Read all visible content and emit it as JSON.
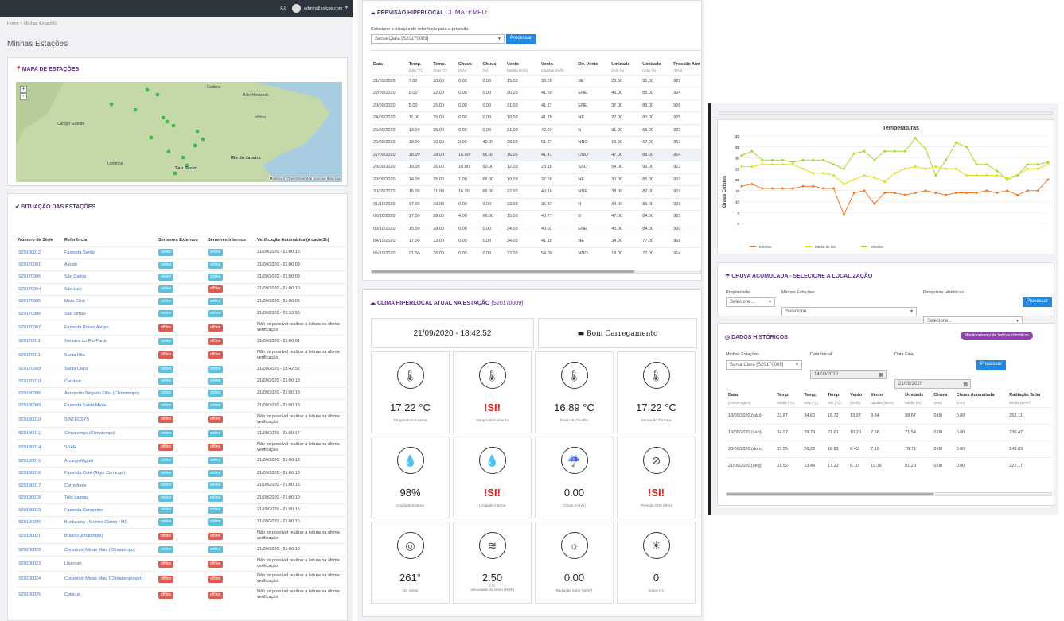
{
  "header": {
    "user": "admin@solcop.com",
    "breadcrumb_home": "Home",
    "breadcrumb_current": "Minhas Estações",
    "page_title": "Minhas Estações"
  },
  "map": {
    "title": "MAPA DE ESTAÇÕES",
    "labels": [
      "Campo Grande",
      "Sao Paulo",
      "Rio de Janeiro",
      "Belo Horizonte",
      "Vitória",
      "Londrina",
      "Goiânia"
    ],
    "credit": "© Mapbox © OpenStreetMap Improve this map"
  },
  "stations": {
    "title": "SITUAÇÃO DAS ESTAÇÕES",
    "headers": [
      "Número de Série",
      "Referência",
      "Sensores Externos",
      "Sensores Internos",
      "Verificação Automática (a cada 3h)"
    ],
    "rows": [
      [
        "S20190012",
        "Fazenda Sertão",
        "online",
        "online",
        "21/09/2020 - 21:00:15"
      ],
      [
        "S20170001",
        "Agudo",
        "online",
        "online",
        "21/09/2020 - 21:00:09"
      ],
      [
        "S20170005",
        "São Carlos",
        "online",
        "online",
        "21/09/2020 - 21:00:08"
      ],
      [
        "S20170004",
        "São Luiz",
        "online",
        "offline",
        "21/09/2020 - 21:00:10"
      ],
      [
        "S20170005",
        "Mata Ciliar",
        "online",
        "online",
        "21/09/2020 - 21:00:06"
      ],
      [
        "S20170006",
        "São Simão",
        "online",
        "online",
        "21/09/2020 - 20:53:56"
      ],
      [
        "S20170007",
        "Fazenda Pouso Alegre",
        "offline",
        "offline",
        "Não foi possível realizar a leitura na última verificação"
      ],
      [
        "S20170011",
        "Santana do Rio Pardo",
        "online",
        "offline",
        "21/09/2020 - 21:00:01"
      ],
      [
        "S20170011",
        "Santa Rita",
        "offline",
        "offline",
        "Não foi possível realizar a leitura na última verificação"
      ],
      [
        "S20170009",
        "Santa Clara",
        "online",
        "online",
        "21/09/2020 - 18:42:52"
      ],
      [
        "S20170010",
        "Camburi",
        "online",
        "online",
        "21/09/2020 - 21:00:18"
      ],
      [
        "S20180006",
        "Aeroporto Salgado Filho (Climatempo)",
        "online",
        "online",
        "21/09/2020 - 21:00:18"
      ],
      [
        "S20180009",
        "Fazenda Santa Marie",
        "online",
        "online",
        "21/09/2020 - 21:00:18"
      ],
      [
        "S20180010",
        "SINTECSYS",
        "offline",
        "offline",
        "Não foi possível realizar a leitura na última verificação"
      ],
      [
        "S20180011",
        "Climatempo (Climatempo)",
        "online",
        "online",
        "21/09/2020 - 21:00:17"
      ],
      [
        "S20180014",
        "SSAR",
        "offline",
        "offline",
        "Não foi possível realizar a leitura na última verificação"
      ],
      [
        "S20180015",
        "Arcanjo Miguel",
        "online",
        "online",
        "21/09/2020 - 21:00:13"
      ],
      [
        "S20180016",
        "Fazenda Coté (Algor Caminga)",
        "online",
        "online",
        "21/09/2020 - 21:00:18"
      ],
      [
        "S20190017",
        "Corredores",
        "online",
        "online",
        "21/09/2020 - 21:00:16"
      ],
      [
        "S20190018",
        "Três Lagoas",
        "online",
        "online",
        "21/09/2020 - 21:00:19"
      ],
      [
        "S20190019",
        "Fazenda Campinho",
        "online",
        "online",
        "21/09/2020 - 21:00:15"
      ],
      [
        "S20190020",
        "Buritizama - Montes Claros / MG",
        "online",
        "online",
        "21/09/2020 - 21:00:16"
      ],
      [
        "S20190021",
        "Brasil (Climatempo)",
        "offline",
        "offline",
        "Não foi possível realizar a leitura na última verificação"
      ],
      [
        "S20200022",
        "Consórcio Minas Mais (Climatempo)",
        "online",
        "online",
        "21/09/2020 - 21:00:10"
      ],
      [
        "S20200023",
        "Liberdan",
        "offline",
        "offline",
        "Não foi possível realizar a leitura na última verificação"
      ],
      [
        "S20200024",
        "Consórcio Minas Mais (Climatempo)geri",
        "offline",
        "offline",
        "Não foi possível realizar a leitura na última verificação"
      ],
      [
        "S20200025",
        "Colocue",
        "offline",
        "offline",
        "Não foi possível realizar a leitura na última verificação"
      ]
    ]
  },
  "forecast": {
    "title": "PREVISÃO HIPERLOCAL",
    "brand": "CLIMATEMPO",
    "select_label": "Selecione a estação de referência para a previsão",
    "select_value": "Santa Clara [S20170009]",
    "button": "Processar",
    "headers": [
      "Data",
      "Temp.",
      "Temp.",
      "Chuva",
      "Chuva",
      "Vento",
      "Vento",
      "Dir. Vento",
      "Umidade",
      "Umidade",
      "Pressão Atm"
    ],
    "subheaders": [
      "",
      "(mín °C)",
      "(máx °C)",
      "(mm)",
      "(%)",
      "(média km/h)",
      "(rajadas km/h)",
      "",
      "(mín %)",
      "(máx %)",
      "(hPa)"
    ],
    "rows": [
      [
        "21/09/2020",
        "7.00",
        "20.00",
        "0.00",
        "0.00",
        "15.03",
        "33.29",
        "SE",
        "28.00",
        "91.00",
        "922"
      ],
      [
        "22/09/2020",
        "5.00",
        "22.00",
        "0.00",
        "0.00",
        "20.03",
        "41.59",
        "ENE",
        "46.00",
        "85.00",
        "924"
      ],
      [
        "23/09/2020",
        "5.00",
        "25.00",
        "0.00",
        "0.00",
        "21.03",
        "41.27",
        "ENE",
        "37.00",
        "83.00",
        "926"
      ],
      [
        "24/09/2020",
        "11.00",
        "25.00",
        "0.00",
        "0.00",
        "19.03",
        "41.18",
        "NE",
        "27.00",
        "80.00",
        "925"
      ],
      [
        "25/09/2020",
        "13.00",
        "25.00",
        "0.00",
        "0.00",
        "21.03",
        "42.69",
        "N",
        "31.00",
        "65.00",
        "921"
      ],
      [
        "26/09/2020",
        "18.00",
        "30.00",
        "2.00",
        "40.00",
        "28.03",
        "51.27",
        "NNO",
        "15.00",
        "67.00",
        "917"
      ],
      [
        "27/09/2020",
        "18.00",
        "28.00",
        "16.00",
        "66.00",
        "16.03",
        "41.41",
        "ONO",
        "47.00",
        "86.00",
        "914"
      ],
      [
        "28/09/2020",
        "19.00",
        "26.00",
        "10.00",
        "90.00",
        "12.03",
        "28.18",
        "SSO",
        "54.00",
        "96.00",
        "917"
      ],
      [
        "29/09/2020",
        "14.00",
        "25.00",
        "1.00",
        "66.00",
        "19.03",
        "37.58",
        "NE",
        "30.00",
        "85.00",
        "919"
      ],
      [
        "30/09/2020",
        "16.00",
        "31.00",
        "16.00",
        "66.00",
        "22.03",
        "40.18",
        "NNE",
        "38.00",
        "82.00",
        "919"
      ],
      [
        "01/10/2020",
        "17.00",
        "30.00",
        "0.00",
        "0.00",
        "23.03",
        "36.87",
        "N",
        "34.00",
        "85.00",
        "921"
      ],
      [
        "02/10/2020",
        "17.00",
        "28.00",
        "4.00",
        "66.00",
        "15.03",
        "40.77",
        "E",
        "47.00",
        "84.00",
        "921"
      ],
      [
        "03/10/2020",
        "15.00",
        "28.00",
        "0.00",
        "0.00",
        "24.03",
        "40.02",
        "ENE",
        "45.00",
        "84.00",
        "920"
      ],
      [
        "04/10/2020",
        "17.00",
        "32.00",
        "0.00",
        "0.00",
        "24.03",
        "41.18",
        "NE",
        "34.00",
        "77.00",
        "918"
      ],
      [
        "05/10/2020",
        "21.00",
        "36.00",
        "0.00",
        "0.00",
        "32.03",
        "54.09",
        "NNO",
        "18.00",
        "72.00",
        "914"
      ]
    ]
  },
  "current": {
    "title": "CLIMA HIPERLOCAL ATUAL NA ESTAÇÃO",
    "station": "[S20170009]",
    "datetime": "21/09/2020 - 18:42:52",
    "battery": "Bom Carregamento",
    "tiles": [
      {
        "value": "17.22 °C",
        "label": "Temperatura Externa",
        "icon": "thermometer-icon",
        "alert": false
      },
      {
        "value": "!SI!",
        "label": "Temperatura Interna",
        "icon": "thermometer-home-icon",
        "alert": true
      },
      {
        "value": "16.89 °C",
        "label": "Ponto de Orvalho",
        "icon": "dew-point-icon",
        "alert": false
      },
      {
        "value": "17.22 °C",
        "label": "Sensação Térmica",
        "icon": "feels-like-icon",
        "alert": false
      },
      {
        "value": "98%",
        "label": "Umidade Externa",
        "icon": "humidity-icon",
        "alert": false
      },
      {
        "value": "!SI!",
        "label": "Umidade Interna",
        "icon": "humidity-home-icon",
        "alert": true
      },
      {
        "value": "0.00",
        "label": "Chuva (mm/h)",
        "icon": "rain-icon",
        "alert": false
      },
      {
        "value": "!SI!",
        "label": "Pressão ATM (hPa)",
        "icon": "barometer-icon",
        "alert": true
      },
      {
        "value": "261°",
        "label": "Dir. Vento",
        "icon": "compass-icon",
        "alert": false
      },
      {
        "value": "2.50",
        "label": "Velocidade do Vento (km/h)",
        "icon": "wind-icon",
        "alert": false,
        "sub": "ESE"
      },
      {
        "value": "0.00",
        "label": "Radiação Solar (W/m²)",
        "icon": "sun-icon",
        "alert": false
      },
      {
        "value": "0",
        "label": "Índice UV",
        "icon": "uv-icon",
        "alert": false
      }
    ]
  },
  "temp_chart": {
    "title": "Temperaturas",
    "ylabel": "Graus Celsius",
    "legend": [
      "Mínima",
      "Média do dia",
      "Máxima"
    ],
    "colors": [
      "#f07c2a",
      "#e0e020",
      "#a6d930"
    ],
    "chart_data": {
      "type": "line",
      "title": "Temperaturas",
      "ylabel": "Graus Celsius",
      "ylim": [
        0,
        40
      ],
      "series": [
        {
          "name": "Mínima",
          "values": [
            17,
            18,
            16,
            16,
            16,
            16,
            17,
            17,
            16,
            16,
            4,
            14,
            15,
            9,
            14,
            14,
            13,
            14,
            15,
            14,
            13,
            14,
            14,
            14,
            15,
            14,
            15,
            13,
            15,
            15,
            20
          ]
        },
        {
          "name": "Média do dia",
          "values": [
            26,
            26,
            27,
            27,
            27,
            27,
            25,
            23,
            23,
            22,
            18,
            20,
            22,
            21,
            19,
            23,
            25,
            26,
            25,
            26,
            25,
            25,
            22,
            22,
            22,
            22,
            21,
            22,
            25,
            25,
            27
          ]
        },
        {
          "name": "Máxima",
          "values": [
            31,
            33,
            29,
            29,
            29,
            28,
            29,
            29,
            29,
            27,
            25,
            32,
            33,
            29,
            33,
            33,
            33,
            39,
            34,
            22,
            29,
            37,
            35,
            27,
            27,
            24,
            20,
            22,
            27,
            27,
            28
          ]
        }
      ]
    },
    "y_ticks": [
      "0",
      "5",
      "10",
      "15",
      "20",
      "25",
      "30",
      "35",
      "40"
    ]
  },
  "rain": {
    "title": "CHUVA ACUMULADA - SELECIONE A LOCALIZAÇÃO",
    "labels": [
      "Propriedade",
      "Minhas Estações",
      "Pesquisas Históricas"
    ],
    "placeholder": "Selecione...",
    "button": "Processar"
  },
  "history": {
    "title": "DADOS HISTÓRICOS",
    "badge": "Monitoramento de índices climáticos",
    "station_label": "Minhas Estações",
    "station_value": "Santa Clara [S20170009]",
    "start_label": "Data Inicial",
    "start_value": "14/09/2020",
    "end_label": "Data Final",
    "end_value": "21/09/2020",
    "button": "Processar",
    "headers": [
      "Data",
      "Temp.",
      "Temp.",
      "Temp.",
      "Vento",
      "Vento",
      "Umidade",
      "Chuva",
      "Chuva Acumulada",
      "Radiação Solar"
    ],
    "subheaders": [
      "(Amostragem)",
      "Média (°C)",
      "Máx (°C)",
      "Mín (°C)",
      "(km/h)",
      "rajadas (km/h)",
      "Média (%)",
      "(mm)",
      "(mm)",
      "Média (W/m²)"
    ],
    "rows": [
      [
        "18/09/2020 (sáb)",
        "22.87",
        "34.60",
        "16.72",
        "13.27",
        "9.84",
        "98.67",
        "0.00",
        "0.00",
        "252.11"
      ],
      [
        "19/09/2020 (sáb)",
        "24.97",
        "29.79",
        "21.61",
        "10.20",
        "7.66",
        "71.54",
        "0.00",
        "0.00",
        "230.47"
      ],
      [
        "20/09/2020 (dom)",
        "23.55",
        "26.22",
        "18.83",
        "6.43",
        "7.19",
        "78.71",
        "0.00",
        "0.00",
        "245.63"
      ],
      [
        "21/09/2020 (seg)",
        "21.52",
        "23.49",
        "17.22",
        "6.10",
        "19.36",
        "81.29",
        "0.00",
        "0.00",
        "222.17"
      ]
    ]
  }
}
